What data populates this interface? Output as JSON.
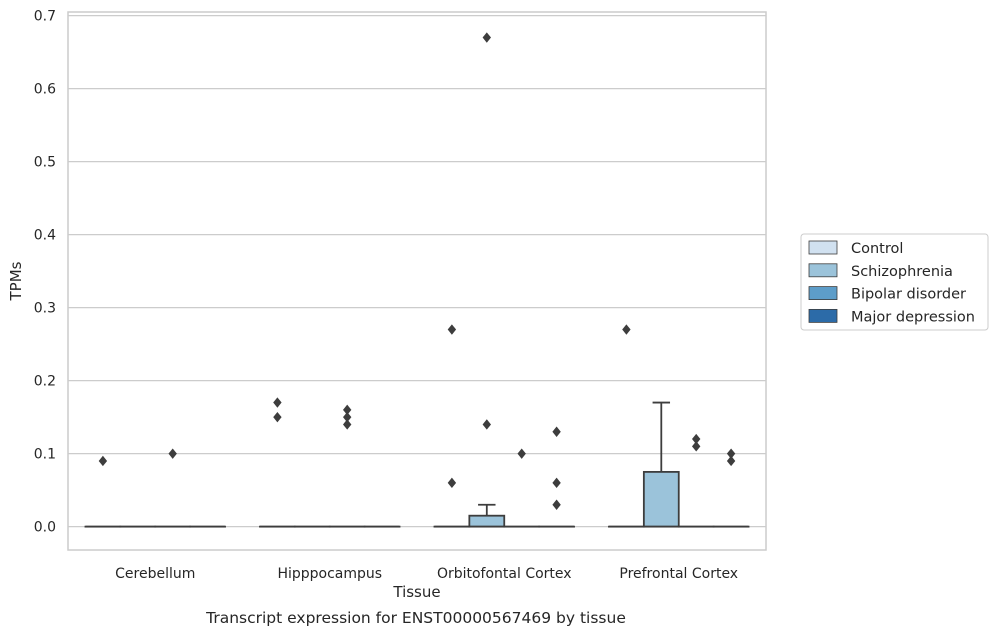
{
  "chart_data": {
    "type": "box",
    "caption": "Transcript expression for ENST00000567469 by tissue",
    "xlabel": "Tissue",
    "ylabel": "TPMs",
    "ylim": [
      -0.032,
      0.705
    ],
    "yticks": [
      0.0,
      0.1,
      0.2,
      0.3,
      0.4,
      0.5,
      0.6,
      0.7
    ],
    "ytick_labels": [
      "0.0",
      "0.1",
      "0.2",
      "0.3",
      "0.4",
      "0.5",
      "0.6",
      "0.7"
    ],
    "grid": "horizontal",
    "legend_position": "right",
    "categories": [
      "Cerebellum",
      "Hipppocampus",
      "Orbitofontal Cortex",
      "Prefrontal Cortex"
    ],
    "series": [
      {
        "name": "Control",
        "color": "#d1e1f0",
        "boxes": [
          {
            "q1": 0,
            "median": 0,
            "q3": 0,
            "whisker_low": 0,
            "whisker_high": 0,
            "outliers": [
              0.09
            ]
          },
          {
            "q1": 0,
            "median": 0,
            "q3": 0,
            "whisker_low": 0,
            "whisker_high": 0,
            "outliers": [
              0.17,
              0.15
            ]
          },
          {
            "q1": 0,
            "median": 0,
            "q3": 0,
            "whisker_low": 0,
            "whisker_high": 0,
            "outliers": [
              0.27,
              0.06
            ]
          },
          {
            "q1": 0,
            "median": 0,
            "q3": 0,
            "whisker_low": 0,
            "whisker_high": 0,
            "outliers": [
              0.27
            ]
          }
        ]
      },
      {
        "name": "Schizophrenia",
        "color": "#9bc3da",
        "boxes": [
          {
            "q1": 0,
            "median": 0,
            "q3": 0,
            "whisker_low": 0,
            "whisker_high": 0,
            "outliers": []
          },
          {
            "q1": 0,
            "median": 0,
            "q3": 0,
            "whisker_low": 0,
            "whisker_high": 0,
            "outliers": []
          },
          {
            "q1": 0,
            "median": 0,
            "q3": 0.015,
            "whisker_low": 0,
            "whisker_high": 0.03,
            "outliers": [
              0.67,
              0.14
            ]
          },
          {
            "q1": 0,
            "median": 0,
            "q3": 0.075,
            "whisker_low": 0,
            "whisker_high": 0.17,
            "outliers": []
          }
        ]
      },
      {
        "name": "Bipolar disorder",
        "color": "#5d9dc9",
        "boxes": [
          {
            "q1": 0,
            "median": 0,
            "q3": 0,
            "whisker_low": 0,
            "whisker_high": 0,
            "outliers": [
              0.1
            ]
          },
          {
            "q1": 0,
            "median": 0,
            "q3": 0,
            "whisker_low": 0,
            "whisker_high": 0,
            "outliers": [
              0.16,
              0.15,
              0.14
            ]
          },
          {
            "q1": 0,
            "median": 0,
            "q3": 0,
            "whisker_low": 0,
            "whisker_high": 0,
            "outliers": [
              0.1
            ]
          },
          {
            "q1": 0,
            "median": 0,
            "q3": 0,
            "whisker_low": 0,
            "whisker_high": 0,
            "outliers": [
              0.12,
              0.11
            ]
          }
        ]
      },
      {
        "name": "Major depression",
        "color": "#2c6ba8",
        "boxes": [
          {
            "q1": 0,
            "median": 0,
            "q3": 0,
            "whisker_low": 0,
            "whisker_high": 0,
            "outliers": []
          },
          {
            "q1": 0,
            "median": 0,
            "q3": 0,
            "whisker_low": 0,
            "whisker_high": 0,
            "outliers": []
          },
          {
            "q1": 0,
            "median": 0,
            "q3": 0,
            "whisker_low": 0,
            "whisker_high": 0,
            "outliers": [
              0.13,
              0.06,
              0.03
            ]
          },
          {
            "q1": 0,
            "median": 0,
            "q3": 0,
            "whisker_low": 0,
            "whisker_high": 0,
            "outliers": [
              0.1,
              0.09
            ]
          }
        ]
      }
    ]
  }
}
